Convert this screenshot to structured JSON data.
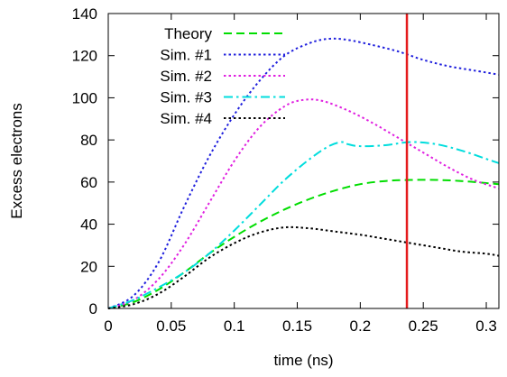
{
  "chart_data": {
    "type": "line",
    "title": "",
    "xlabel": "time (ns)",
    "ylabel": "Excess electrons",
    "xlim": [
      0,
      0.31
    ],
    "ylim": [
      0,
      140
    ],
    "xticks": [
      0,
      0.05,
      0.1,
      0.15,
      0.2,
      0.25,
      0.3
    ],
    "xtick_labels": [
      "0",
      "0.05",
      "0.1",
      "0.15",
      "0.2",
      "0.25",
      "0.3"
    ],
    "yticks": [
      0,
      20,
      40,
      60,
      80,
      100,
      120,
      140
    ],
    "ytick_labels": [
      "0",
      "20",
      "40",
      "60",
      "80",
      "100",
      "120",
      "140"
    ],
    "grid": false,
    "legend_position": "top-left",
    "vertical_marker": {
      "x": 0.237,
      "color": "#e41a1c"
    },
    "series": [
      {
        "name": "Theory",
        "color": "#00dd00",
        "dash": "dashed",
        "x": [
          0,
          0.02,
          0.04,
          0.06,
          0.08,
          0.1,
          0.12,
          0.14,
          0.16,
          0.18,
          0.2,
          0.22,
          0.24,
          0.26,
          0.28,
          0.3,
          0.31
        ],
        "y": [
          0,
          3,
          9,
          17,
          26,
          34,
          41,
          47,
          52,
          56,
          59,
          60.5,
          61,
          61,
          60.5,
          59.5,
          59
        ]
      },
      {
        "name": "Sim. #1",
        "color": "#2020dd",
        "dash": "dotted",
        "x": [
          0,
          0.02,
          0.04,
          0.06,
          0.08,
          0.1,
          0.12,
          0.14,
          0.16,
          0.175,
          0.19,
          0.21,
          0.23,
          0.25,
          0.27,
          0.29,
          0.31
        ],
        "y": [
          0,
          6,
          22,
          48,
          72,
          92,
          108,
          120,
          126,
          128,
          127.5,
          125,
          122,
          118,
          115,
          113,
          111
        ]
      },
      {
        "name": "Sim. #2",
        "color": "#e020e0",
        "dash": "dotted",
        "x": [
          0,
          0.02,
          0.04,
          0.06,
          0.08,
          0.1,
          0.12,
          0.14,
          0.155,
          0.17,
          0.19,
          0.21,
          0.23,
          0.25,
          0.27,
          0.29,
          0.31
        ],
        "y": [
          0,
          4,
          14,
          30,
          50,
          70,
          86,
          96,
          99,
          98.5,
          94,
          88,
          81,
          74,
          67,
          61,
          57
        ]
      },
      {
        "name": "Sim. #3",
        "color": "#00dddd",
        "dash": "dashdot",
        "x": [
          0,
          0.02,
          0.04,
          0.06,
          0.08,
          0.1,
          0.12,
          0.14,
          0.16,
          0.175,
          0.185,
          0.19,
          0.2,
          0.22,
          0.24,
          0.26,
          0.28,
          0.3,
          0.31
        ],
        "y": [
          0,
          4,
          10,
          17,
          26,
          37,
          49,
          61,
          71,
          77,
          79,
          78,
          77,
          77.5,
          79,
          78,
          75,
          71,
          69
        ]
      },
      {
        "name": "Sim. #4",
        "color": "#000000",
        "dash": "dotted",
        "x": [
          0,
          0.02,
          0.04,
          0.06,
          0.08,
          0.1,
          0.12,
          0.14,
          0.16,
          0.18,
          0.2,
          0.22,
          0.24,
          0.26,
          0.28,
          0.3,
          0.31
        ],
        "y": [
          0,
          2,
          7,
          15,
          24,
          31,
          36,
          38.5,
          38,
          36.5,
          35,
          33,
          31,
          29,
          27,
          26,
          25
        ]
      }
    ]
  }
}
